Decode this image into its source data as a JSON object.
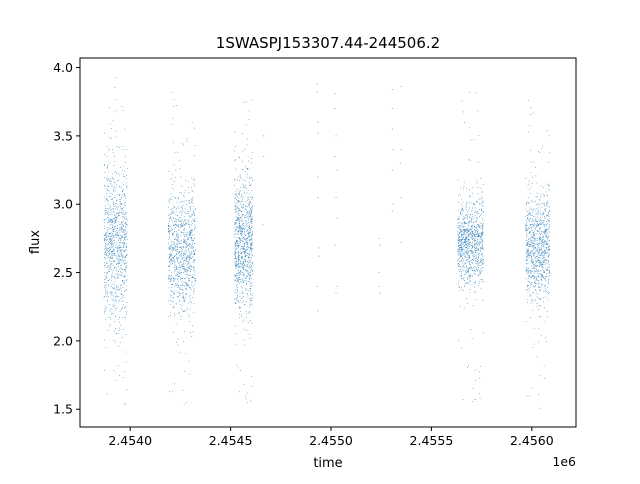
{
  "chart_data": {
    "type": "scatter",
    "title": "1SWASPJ153307.44-244506.2",
    "xlabel": "time",
    "ylabel": "flux",
    "x_offset_label": "1e6",
    "xlim": [
      2453750,
      2456220
    ],
    "ylim": [
      1.37,
      4.07
    ],
    "x_ticks": [
      2454000,
      2454500,
      2455000,
      2455500,
      2456000
    ],
    "x_tick_labels": [
      "2.4540",
      "2.4545",
      "2.4550",
      "2.4555",
      "2.4560"
    ],
    "y_ticks": [
      1.5,
      2.0,
      2.5,
      3.0,
      3.5,
      4.0
    ],
    "y_tick_labels": [
      "1.5",
      "2.0",
      "2.5",
      "3.0",
      "3.5",
      "4.0"
    ],
    "grid": false,
    "marker_color": "#1f77b4",
    "clusters": [
      {
        "x": [
          2453870,
          2453985
        ],
        "y_center": 2.72,
        "y_spread": 0.28,
        "y_range": [
          1.48,
          3.93
        ]
      },
      {
        "x": [
          2454190,
          2454325
        ],
        "y_center": 2.65,
        "y_spread": 0.22,
        "y_range": [
          1.51,
          3.87
        ]
      },
      {
        "x": [
          2454520,
          2454610
        ],
        "y_center": 2.72,
        "y_spread": 0.24,
        "y_range": [
          1.51,
          3.77
        ]
      },
      {
        "x": [
          2455630,
          2455760
        ],
        "y_center": 2.72,
        "y_spread": 0.16,
        "y_range": [
          1.53,
          3.89
        ]
      },
      {
        "x": [
          2455970,
          2456090
        ],
        "y_center": 2.68,
        "y_spread": 0.19,
        "y_range": [
          1.48,
          3.81
        ]
      }
    ],
    "sparse_points": [
      [
        2454665,
        3.5
      ],
      [
        2454665,
        3.35
      ],
      [
        2454660,
        2.85
      ],
      [
        2454930,
        3.88
      ],
      [
        2454930,
        3.82
      ],
      [
        2454935,
        3.6
      ],
      [
        2454935,
        3.52
      ],
      [
        2454935,
        3.2
      ],
      [
        2454935,
        3.05
      ],
      [
        2454940,
        2.68
      ],
      [
        2454940,
        2.62
      ],
      [
        2454930,
        2.4
      ],
      [
        2454935,
        2.22
      ],
      [
        2455020,
        3.81
      ],
      [
        2455020,
        3.7
      ],
      [
        2455025,
        3.5
      ],
      [
        2455020,
        3.35
      ],
      [
        2455030,
        3.25
      ],
      [
        2455025,
        3.05
      ],
      [
        2455030,
        2.9
      ],
      [
        2455020,
        2.7
      ],
      [
        2455030,
        2.4
      ],
      [
        2455025,
        2.35
      ],
      [
        2455240,
        2.75
      ],
      [
        2455245,
        2.7
      ],
      [
        2455240,
        2.5
      ],
      [
        2455240,
        2.4
      ],
      [
        2455245,
        2.35
      ],
      [
        2455305,
        3.84
      ],
      [
        2455305,
        3.7
      ],
      [
        2455305,
        3.55
      ],
      [
        2455310,
        3.4
      ],
      [
        2455305,
        3.25
      ],
      [
        2455310,
        3.0
      ],
      [
        2455305,
        2.95
      ],
      [
        2455350,
        3.86
      ],
      [
        2455350,
        3.4
      ],
      [
        2455345,
        3.3
      ],
      [
        2455350,
        3.05
      ],
      [
        2455350,
        2.72
      ]
    ]
  }
}
